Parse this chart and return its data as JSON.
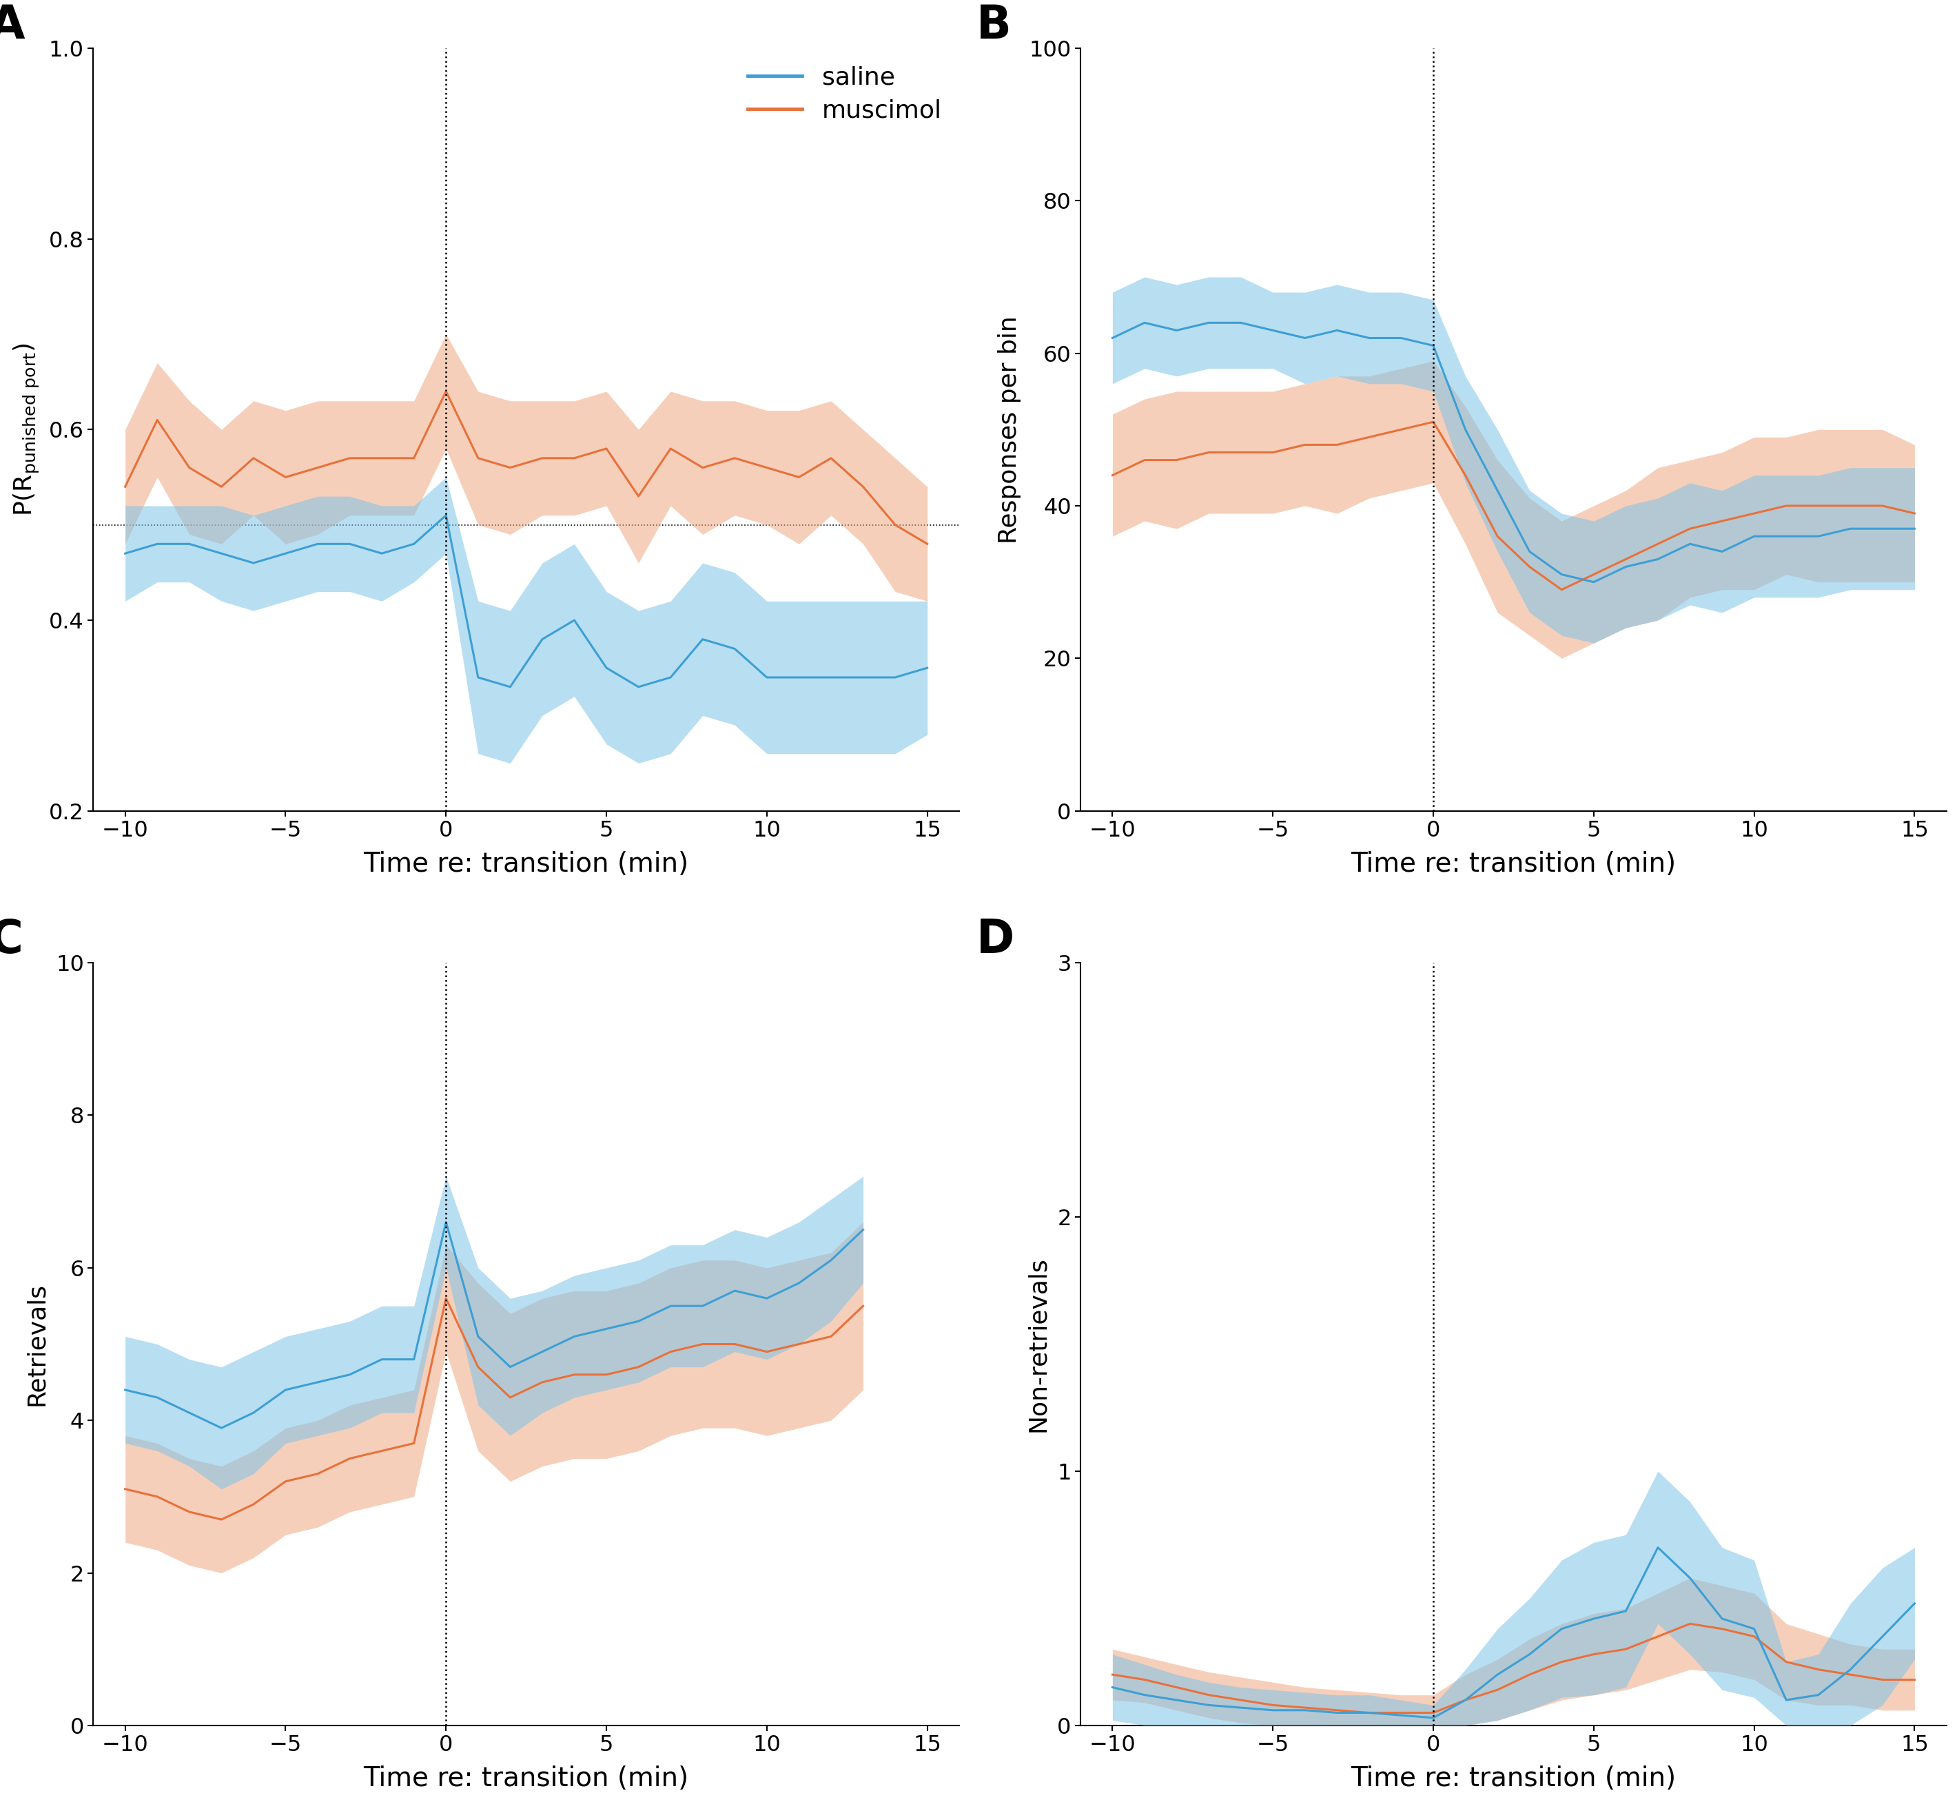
{
  "panel_labels": [
    "A",
    "B",
    "C",
    "D"
  ],
  "xlabel": "Time re: transition (min)",
  "xticks": [
    -10,
    -5,
    0,
    5,
    10,
    15
  ],
  "colors": {
    "saline": "#3d9fd4",
    "muscimol": "#e8713a",
    "saline_fill": "#7fc4e8",
    "muscimol_fill": "#f0a882"
  },
  "A": {
    "ylabel": "P(R$_{punished port}$)",
    "ylim": [
      0.2,
      1.0
    ],
    "yticks": [
      0.2,
      0.4,
      0.6,
      0.8,
      1.0
    ],
    "hline": 0.5,
    "x": [
      -10,
      -9,
      -8,
      -7,
      -6,
      -5,
      -4,
      -3,
      -2,
      -1,
      0,
      1,
      2,
      3,
      4,
      5,
      6,
      7,
      8,
      9,
      10,
      11,
      12,
      13,
      14,
      15
    ],
    "saline_mean": [
      0.47,
      0.48,
      0.48,
      0.47,
      0.46,
      0.47,
      0.48,
      0.48,
      0.47,
      0.48,
      0.51,
      0.34,
      0.33,
      0.38,
      0.4,
      0.35,
      0.33,
      0.34,
      0.38,
      0.37,
      0.34,
      0.34,
      0.34,
      0.34,
      0.34,
      0.35
    ],
    "saline_upper": [
      0.52,
      0.52,
      0.52,
      0.52,
      0.51,
      0.52,
      0.53,
      0.53,
      0.52,
      0.52,
      0.55,
      0.42,
      0.41,
      0.46,
      0.48,
      0.43,
      0.41,
      0.42,
      0.46,
      0.45,
      0.42,
      0.42,
      0.42,
      0.42,
      0.42,
      0.42
    ],
    "saline_lower": [
      0.42,
      0.44,
      0.44,
      0.42,
      0.41,
      0.42,
      0.43,
      0.43,
      0.42,
      0.44,
      0.47,
      0.26,
      0.25,
      0.3,
      0.32,
      0.27,
      0.25,
      0.26,
      0.3,
      0.29,
      0.26,
      0.26,
      0.26,
      0.26,
      0.26,
      0.28
    ],
    "muscimol_mean": [
      0.54,
      0.61,
      0.56,
      0.54,
      0.57,
      0.55,
      0.56,
      0.57,
      0.57,
      0.57,
      0.64,
      0.57,
      0.56,
      0.57,
      0.57,
      0.58,
      0.53,
      0.58,
      0.56,
      0.57,
      0.56,
      0.55,
      0.57,
      0.54,
      0.5,
      0.48
    ],
    "muscimol_upper": [
      0.6,
      0.67,
      0.63,
      0.6,
      0.63,
      0.62,
      0.63,
      0.63,
      0.63,
      0.63,
      0.7,
      0.64,
      0.63,
      0.63,
      0.63,
      0.64,
      0.6,
      0.64,
      0.63,
      0.63,
      0.62,
      0.62,
      0.63,
      0.6,
      0.57,
      0.54
    ],
    "muscimol_lower": [
      0.48,
      0.55,
      0.49,
      0.48,
      0.51,
      0.48,
      0.49,
      0.51,
      0.51,
      0.51,
      0.58,
      0.5,
      0.49,
      0.51,
      0.51,
      0.52,
      0.46,
      0.52,
      0.49,
      0.51,
      0.5,
      0.48,
      0.51,
      0.48,
      0.43,
      0.42
    ]
  },
  "B": {
    "ylabel": "Responses per bin",
    "ylim": [
      0,
      100
    ],
    "yticks": [
      0,
      20,
      40,
      60,
      80,
      100
    ],
    "x": [
      -10,
      -9,
      -8,
      -7,
      -6,
      -5,
      -4,
      -3,
      -2,
      -1,
      0,
      1,
      2,
      3,
      4,
      5,
      6,
      7,
      8,
      9,
      10,
      11,
      12,
      13,
      14,
      15
    ],
    "saline_mean": [
      62,
      64,
      63,
      64,
      64,
      63,
      62,
      63,
      62,
      62,
      61,
      50,
      42,
      34,
      31,
      30,
      32,
      33,
      35,
      34,
      36,
      36,
      36,
      37,
      37,
      37
    ],
    "saline_upper": [
      68,
      70,
      69,
      70,
      70,
      68,
      68,
      69,
      68,
      68,
      67,
      57,
      50,
      42,
      39,
      38,
      40,
      41,
      43,
      42,
      44,
      44,
      44,
      45,
      45,
      45
    ],
    "saline_lower": [
      56,
      58,
      57,
      58,
      58,
      58,
      56,
      57,
      56,
      56,
      55,
      43,
      34,
      26,
      23,
      22,
      24,
      25,
      27,
      26,
      28,
      28,
      28,
      29,
      29,
      29
    ],
    "muscimol_mean": [
      44,
      46,
      46,
      47,
      47,
      47,
      48,
      48,
      49,
      50,
      51,
      44,
      36,
      32,
      29,
      31,
      33,
      35,
      37,
      38,
      39,
      40,
      40,
      40,
      40,
      39
    ],
    "muscimol_upper": [
      52,
      54,
      55,
      55,
      55,
      55,
      56,
      57,
      57,
      58,
      59,
      53,
      46,
      41,
      38,
      40,
      42,
      45,
      46,
      47,
      49,
      49,
      50,
      50,
      50,
      48
    ],
    "muscimol_lower": [
      36,
      38,
      37,
      39,
      39,
      39,
      40,
      39,
      41,
      42,
      43,
      35,
      26,
      23,
      20,
      22,
      24,
      25,
      28,
      29,
      29,
      31,
      30,
      30,
      30,
      30
    ]
  },
  "C": {
    "ylabel": "Retrievals",
    "ylim": [
      0,
      10
    ],
    "yticks": [
      0,
      2,
      4,
      6,
      8,
      10
    ],
    "x": [
      -10,
      -9,
      -8,
      -7,
      -6,
      -5,
      -4,
      -3,
      -2,
      -1,
      0,
      1,
      2,
      3,
      4,
      5,
      6,
      7,
      8,
      9,
      10,
      11,
      12,
      13
    ],
    "saline_mean": [
      4.4,
      4.3,
      4.1,
      3.9,
      4.1,
      4.4,
      4.5,
      4.6,
      4.8,
      4.8,
      6.6,
      5.1,
      4.7,
      4.9,
      5.1,
      5.2,
      5.3,
      5.5,
      5.5,
      5.7,
      5.6,
      5.8,
      6.1,
      6.5
    ],
    "saline_upper": [
      5.1,
      5.0,
      4.8,
      4.7,
      4.9,
      5.1,
      5.2,
      5.3,
      5.5,
      5.5,
      7.2,
      6.0,
      5.6,
      5.7,
      5.9,
      6.0,
      6.1,
      6.3,
      6.3,
      6.5,
      6.4,
      6.6,
      6.9,
      7.2
    ],
    "saline_lower": [
      3.7,
      3.6,
      3.4,
      3.1,
      3.3,
      3.7,
      3.8,
      3.9,
      4.1,
      4.1,
      6.0,
      4.2,
      3.8,
      4.1,
      4.3,
      4.4,
      4.5,
      4.7,
      4.7,
      4.9,
      4.8,
      5.0,
      5.3,
      5.8
    ],
    "muscimol_mean": [
      3.1,
      3.0,
      2.8,
      2.7,
      2.9,
      3.2,
      3.3,
      3.5,
      3.6,
      3.7,
      5.6,
      4.7,
      4.3,
      4.5,
      4.6,
      4.6,
      4.7,
      4.9,
      5.0,
      5.0,
      4.9,
      5.0,
      5.1,
      5.5
    ],
    "muscimol_upper": [
      3.8,
      3.7,
      3.5,
      3.4,
      3.6,
      3.9,
      4.0,
      4.2,
      4.3,
      4.4,
      6.3,
      5.8,
      5.4,
      5.6,
      5.7,
      5.7,
      5.8,
      6.0,
      6.1,
      6.1,
      6.0,
      6.1,
      6.2,
      6.6
    ],
    "muscimol_lower": [
      2.4,
      2.3,
      2.1,
      2.0,
      2.2,
      2.5,
      2.6,
      2.8,
      2.9,
      3.0,
      4.9,
      3.6,
      3.2,
      3.4,
      3.5,
      3.5,
      3.6,
      3.8,
      3.9,
      3.9,
      3.8,
      3.9,
      4.0,
      4.4
    ]
  },
  "D": {
    "ylabel": "Non-retrievals",
    "ylim": [
      0,
      3
    ],
    "yticks": [
      0,
      1,
      2,
      3
    ],
    "x": [
      -10,
      -9,
      -8,
      -7,
      -6,
      -5,
      -4,
      -3,
      -2,
      -1,
      0,
      1,
      2,
      3,
      4,
      5,
      6,
      7,
      8,
      9,
      10,
      11,
      12,
      13,
      14,
      15
    ],
    "saline_mean": [
      0.15,
      0.12,
      0.1,
      0.08,
      0.07,
      0.06,
      0.06,
      0.05,
      0.05,
      0.04,
      0.03,
      0.1,
      0.2,
      0.28,
      0.38,
      0.42,
      0.45,
      0.7,
      0.58,
      0.42,
      0.38,
      0.1,
      0.12,
      0.22,
      0.35,
      0.48
    ],
    "saline_upper": [
      0.28,
      0.24,
      0.2,
      0.17,
      0.15,
      0.14,
      0.13,
      0.12,
      0.12,
      0.1,
      0.08,
      0.22,
      0.38,
      0.5,
      0.65,
      0.72,
      0.75,
      1.0,
      0.88,
      0.7,
      0.65,
      0.25,
      0.28,
      0.48,
      0.62,
      0.7
    ],
    "saline_lower": [
      0.02,
      0.0,
      0.0,
      0.0,
      0.0,
      0.0,
      0.0,
      0.0,
      0.0,
      0.0,
      0.0,
      0.0,
      0.02,
      0.06,
      0.11,
      0.12,
      0.15,
      0.4,
      0.28,
      0.14,
      0.11,
      0.0,
      0.0,
      0.0,
      0.08,
      0.26
    ],
    "muscimol_mean": [
      0.2,
      0.18,
      0.15,
      0.12,
      0.1,
      0.08,
      0.07,
      0.06,
      0.05,
      0.05,
      0.05,
      0.1,
      0.14,
      0.2,
      0.25,
      0.28,
      0.3,
      0.35,
      0.4,
      0.38,
      0.35,
      0.25,
      0.22,
      0.2,
      0.18,
      0.18
    ],
    "muscimol_upper": [
      0.3,
      0.27,
      0.24,
      0.21,
      0.19,
      0.17,
      0.15,
      0.14,
      0.13,
      0.12,
      0.12,
      0.2,
      0.26,
      0.34,
      0.4,
      0.44,
      0.46,
      0.52,
      0.58,
      0.55,
      0.52,
      0.4,
      0.36,
      0.32,
      0.3,
      0.3
    ],
    "muscimol_lower": [
      0.1,
      0.09,
      0.06,
      0.03,
      0.01,
      0.0,
      0.0,
      0.0,
      0.0,
      0.0,
      0.0,
      0.0,
      0.02,
      0.06,
      0.1,
      0.12,
      0.14,
      0.18,
      0.22,
      0.21,
      0.18,
      0.1,
      0.08,
      0.08,
      0.06,
      0.06
    ]
  }
}
